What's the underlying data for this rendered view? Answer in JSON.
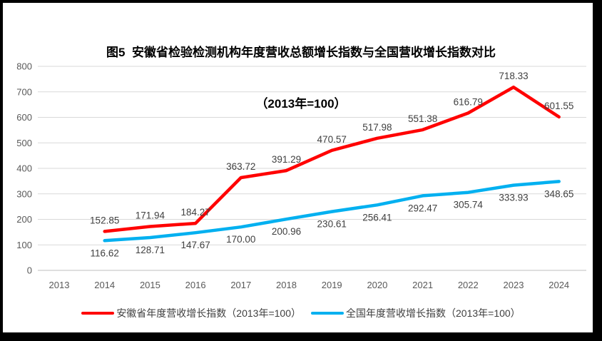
{
  "title": {
    "line1": "图5  安徽省检验检测机构年度营收总额增长指数与全国营收增长指数对比",
    "line2": "（2013年=100）"
  },
  "chart_data": {
    "type": "line",
    "categories": [
      "2013",
      "2014",
      "2015",
      "2016",
      "2017",
      "2018",
      "2019",
      "2020",
      "2021",
      "2022",
      "2023",
      "2024"
    ],
    "series": [
      {
        "name": "安徽省年度营收增长指数（2013年=100）",
        "color": "#FF0000",
        "label_position": "above",
        "values": [
          null,
          152.85,
          171.94,
          184.27,
          363.72,
          391.29,
          470.57,
          517.98,
          551.38,
          616.79,
          718.33,
          601.55
        ]
      },
      {
        "name": "全国年度营收增长指数（2013年=100）",
        "color": "#00B0F0",
        "label_position": "below",
        "values": [
          null,
          116.62,
          128.71,
          147.67,
          170.0,
          200.96,
          230.61,
          256.41,
          292.47,
          305.74,
          333.93,
          348.65
        ]
      }
    ],
    "ylim": [
      0,
      800
    ],
    "ytick_step": 100,
    "grid": true,
    "legend_position": "bottom",
    "styles": {
      "gridline_color": "#D9D9D9",
      "axis_line_color": "#BFBFBF",
      "tick_label_color": "#595959",
      "data_label_color": "#404040"
    }
  }
}
